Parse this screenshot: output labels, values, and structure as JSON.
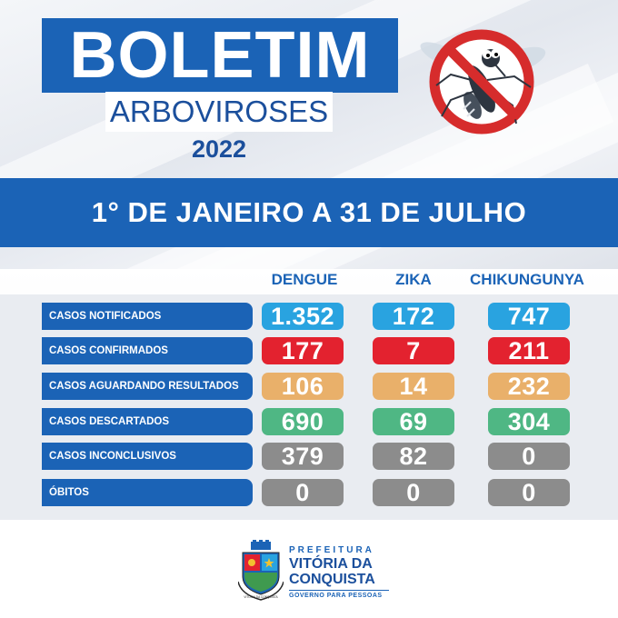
{
  "header": {
    "title": "BOLETIM",
    "subtitle": "ARBOVIROSES",
    "year": "2022",
    "period": "1° DE JANEIRO A 31 DE JULHO"
  },
  "table": {
    "columns": [
      "DENGUE",
      "ZIKA",
      "CHIKUNGUNYA"
    ],
    "rows": [
      {
        "label": "CASOS NOTIFICADOS",
        "values": [
          "1.352",
          "172",
          "747"
        ],
        "color": "#29a3e0"
      },
      {
        "label": "CASOS CONFIRMADOS",
        "values": [
          "177",
          "7",
          "211"
        ],
        "color": "#e3222f"
      },
      {
        "label": "CASOS AGUARDANDO RESULTADOS",
        "values": [
          "106",
          "14",
          "232"
        ],
        "color": "#e9b06a"
      },
      {
        "label": "CASOS DESCARTADOS",
        "values": [
          "690",
          "69",
          "304"
        ],
        "color": "#4fb784"
      },
      {
        "label": "CASOS INCONCLUSIVOS",
        "values": [
          "379",
          "82",
          "0"
        ],
        "color": "#8c8c8c"
      },
      {
        "label": "ÓBITOS",
        "values": [
          "0",
          "0",
          "0"
        ],
        "color": "#8c8c8c"
      }
    ]
  },
  "footer": {
    "prefeitura": "PREFEITURA",
    "city_line1": "VITÓRIA DA",
    "city_line2": "CONQUISTA",
    "slogan": "GOVERNO PARA PESSOAS",
    "crest_text": "VITÓRIA DA CONQUISTA"
  },
  "icons": {
    "prohibition": "no-mosquito-icon",
    "crest": "city-crest-logo"
  },
  "colors": {
    "primary": "#1b63b6",
    "notified": "#29a3e0",
    "confirmed": "#e3222f",
    "pending": "#e9b06a",
    "discarded": "#4fb784",
    "inconclusive": "#8c8c8c"
  }
}
